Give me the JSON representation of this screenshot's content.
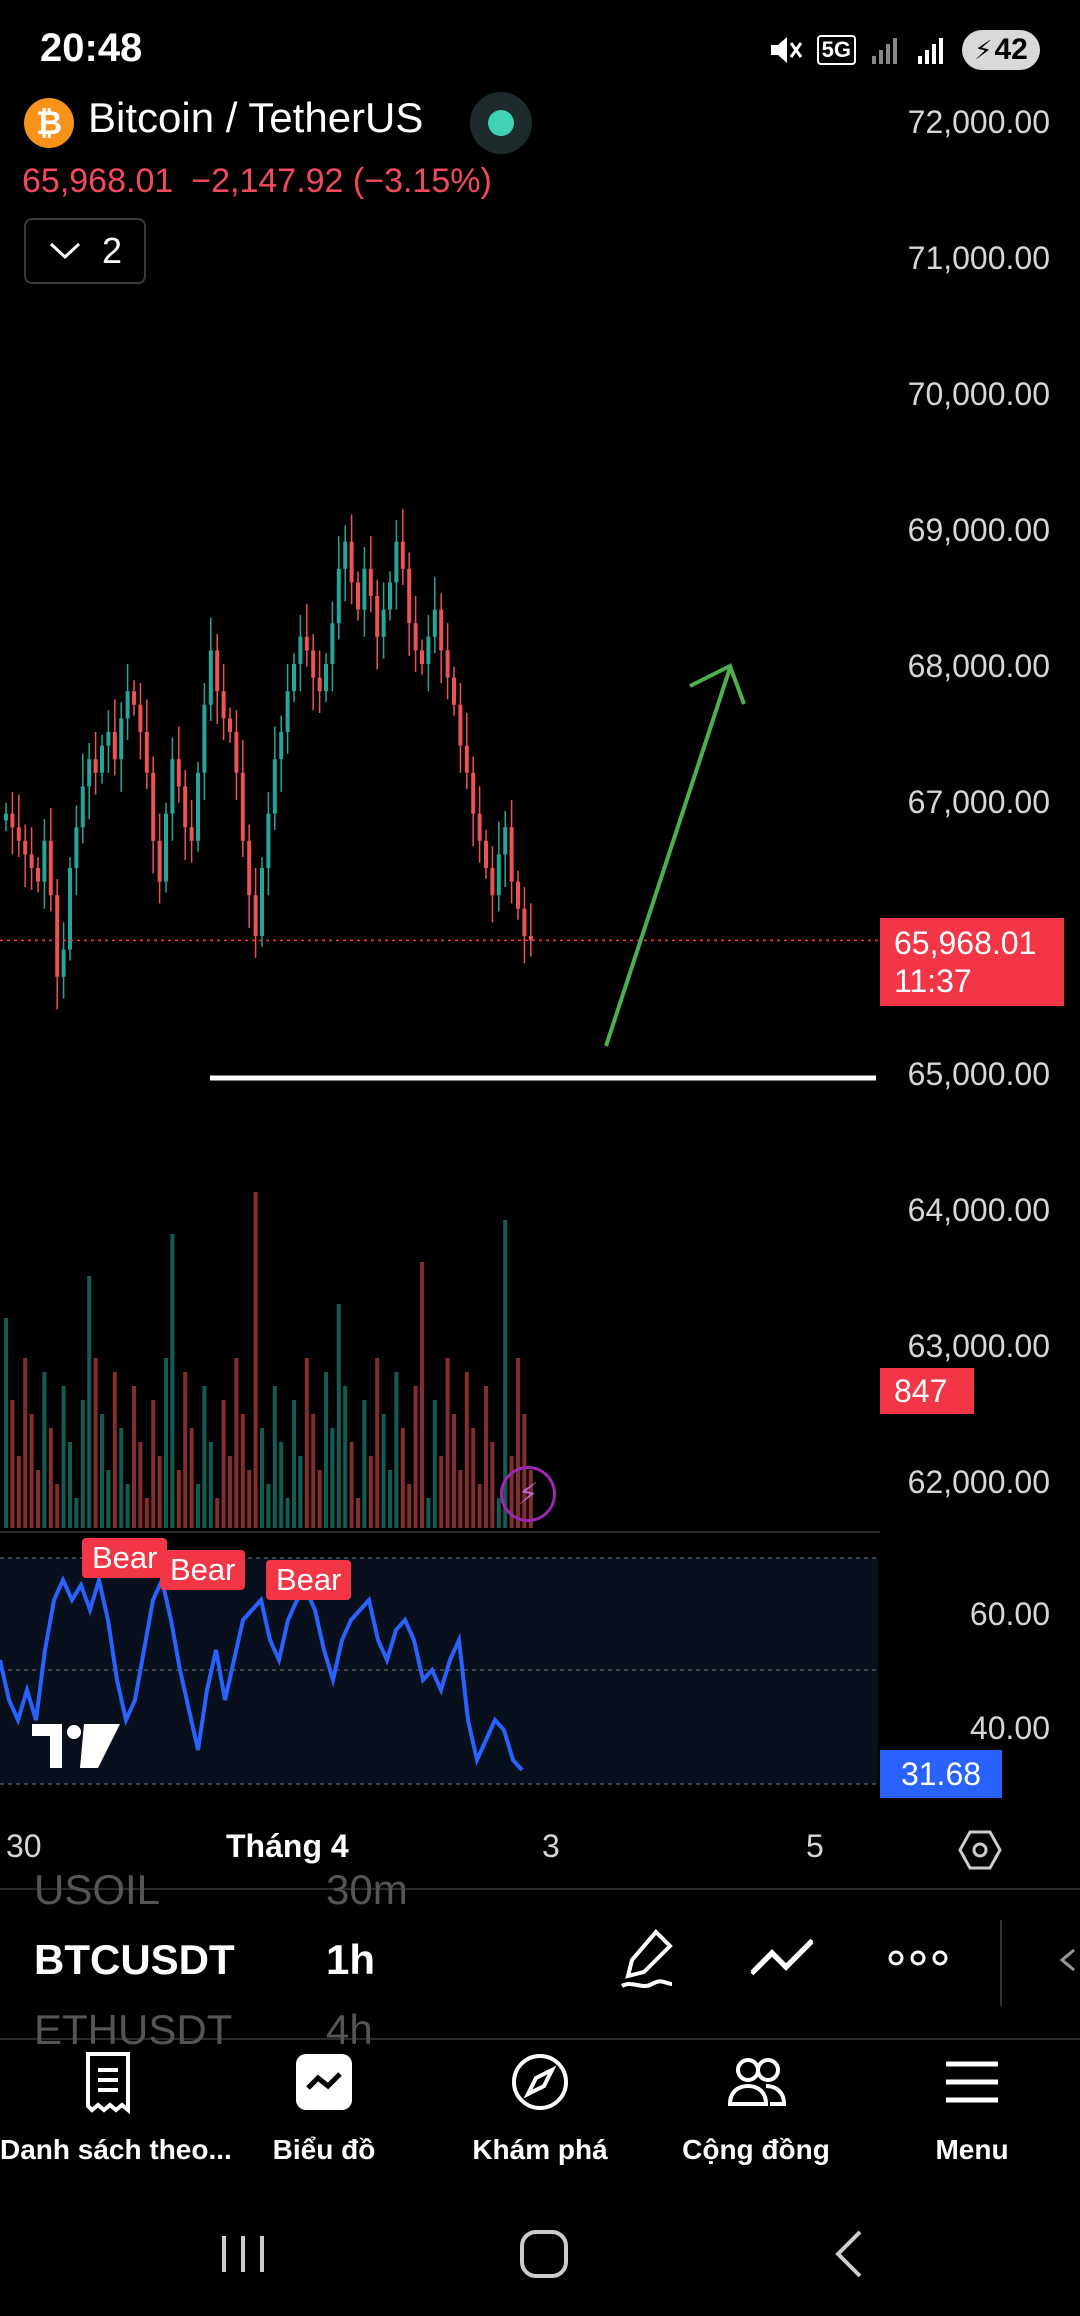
{
  "status_bar": {
    "time": "20:48",
    "network": "5G",
    "battery": "42"
  },
  "header": {
    "title": "Bitcoin / TetherUS",
    "icon": "bitcoin-icon",
    "price": "65,968.01",
    "change": "−2,147.92 (−3.15%)",
    "indicator_count": "2"
  },
  "price_axis": [
    "72,000.00",
    "71,000.00",
    "70,000.00",
    "69,000.00",
    "68,000.00",
    "67,000.00",
    "65,000.00",
    "64,000.00",
    "63,000.00",
    "62,000.00"
  ],
  "price_tag": {
    "price": "65,968.01",
    "countdown": "11:37"
  },
  "volume_tag": "847",
  "rsi": {
    "upper": "60.00",
    "lower": "40.00",
    "current": "31.68",
    "labels": [
      "Bear",
      "Bear",
      "Bear"
    ]
  },
  "time_axis": [
    "30",
    "Tháng 4",
    "3",
    "5"
  ],
  "symbol_list": [
    {
      "symbol": "USOIL",
      "timeframe": "30m"
    },
    {
      "symbol": "BTCUSDT",
      "timeframe": "1h"
    },
    {
      "symbol": "ETHUSDT",
      "timeframe": "4h"
    }
  ],
  "bottom_nav": [
    {
      "label": "Danh sách theo...",
      "icon": "watchlist-icon"
    },
    {
      "label": "Biểu đồ",
      "icon": "chart-icon"
    },
    {
      "label": "Khám phá",
      "icon": "compass-icon"
    },
    {
      "label": "Cộng đồng",
      "icon": "community-icon"
    },
    {
      "label": "Menu",
      "icon": "menu-icon"
    }
  ],
  "colors": {
    "up": "#26a69a",
    "down": "#ef5350",
    "accent_red": "#f23645",
    "rsi_line": "#2962ff",
    "arrow": "#4caf50"
  }
}
